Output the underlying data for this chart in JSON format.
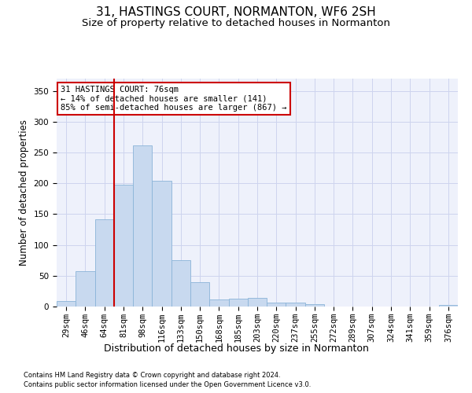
{
  "title": "31, HASTINGS COURT, NORMANTON, WF6 2SH",
  "subtitle": "Size of property relative to detached houses in Normanton",
  "xlabel": "Distribution of detached houses by size in Normanton",
  "ylabel": "Number of detached properties",
  "categories": [
    "29sqm",
    "46sqm",
    "64sqm",
    "81sqm",
    "98sqm",
    "116sqm",
    "133sqm",
    "150sqm",
    "168sqm",
    "185sqm",
    "203sqm",
    "220sqm",
    "237sqm",
    "255sqm",
    "272sqm",
    "289sqm",
    "307sqm",
    "324sqm",
    "341sqm",
    "359sqm",
    "376sqm"
  ],
  "values": [
    9,
    57,
    142,
    198,
    262,
    204,
    75,
    40,
    12,
    13,
    14,
    6,
    7,
    4,
    0,
    0,
    0,
    0,
    0,
    0,
    3
  ],
  "bar_color": "#c8d9ef",
  "bar_edge_color": "#8ab4d8",
  "vline_pos": 2.5,
  "vline_color": "#cc0000",
  "annotation_title": "31 HASTINGS COURT: 76sqm",
  "annotation_line1": "← 14% of detached houses are smaller (141)",
  "annotation_line2": "85% of semi-detached houses are larger (867) →",
  "annotation_box_color": "#cc0000",
  "ylim": [
    0,
    370
  ],
  "yticks": [
    0,
    50,
    100,
    150,
    200,
    250,
    300,
    350
  ],
  "footer1": "Contains HM Land Registry data © Crown copyright and database right 2024.",
  "footer2": "Contains public sector information licensed under the Open Government Licence v3.0.",
  "bg_color": "#eef1fb",
  "grid_color": "#cdd4ee",
  "title_fontsize": 11,
  "subtitle_fontsize": 9.5,
  "tick_fontsize": 7.5,
  "ylabel_fontsize": 8.5,
  "xlabel_fontsize": 9,
  "annotation_fontsize": 7.5,
  "footer_fontsize": 6
}
